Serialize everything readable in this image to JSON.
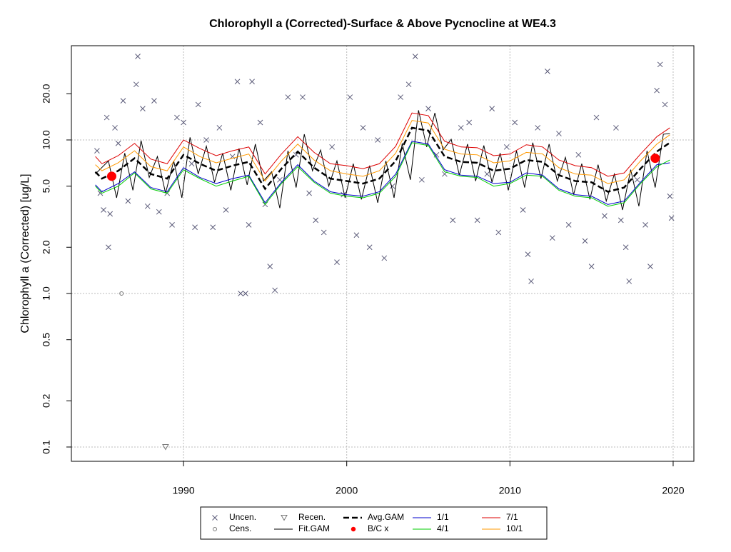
{
  "chart_data": {
    "type": "scatter",
    "title": "Chlorophyll a (Corrected)-Surface & Above Pycnocline at WE4.3",
    "y_label": "Chlorophyll a (Corrected) [ug/L]",
    "xlim": [
      1983.13,
      2021.27
    ],
    "xticks": [
      1990,
      2000,
      2010,
      2020
    ],
    "ylim": [
      0.0807,
      41.1
    ],
    "ylog": true,
    "yticks": [
      0.1,
      0.2,
      0.5,
      {
        "value": 1,
        "label": "1.0"
      },
      {
        "value": 2,
        "label": "2.0"
      },
      {
        "value": 5,
        "label": "5.0"
      },
      {
        "value": 10,
        "label": "10.0"
      },
      {
        "value": 20,
        "label": "20.0"
      }
    ],
    "ygrid": [
      0.1,
      1,
      10
    ],
    "grid": true,
    "series": [
      {
        "name": "Uncen.",
        "kind": "points",
        "marker": "x",
        "color": "#5a5a78",
        "x": [
          1984.7,
          1984.9,
          1985.1,
          1985.3,
          1985.4,
          1985.5,
          1985.8,
          1986.0,
          1986.3,
          1986.6,
          1987.1,
          1987.2,
          1987.5,
          1987.8,
          1988.2,
          1988.5,
          1989.0,
          1989.3,
          1989.6,
          1990.0,
          1990.5,
          1990.7,
          1990.9,
          1991.4,
          1991.8,
          1992.2,
          1992.6,
          1993.0,
          1993.3,
          1993.5,
          1993.8,
          1994.0,
          1994.2,
          1994.7,
          1995.0,
          1995.3,
          1995.6,
          1995.9,
          1996.4,
          1996.9,
          1997.3,
          1997.7,
          1998.1,
          1998.6,
          1999.1,
          1999.4,
          1999.8,
          2000.2,
          2000.6,
          2001.0,
          2001.4,
          2001.9,
          2002.3,
          2002.8,
          2003.3,
          2003.8,
          2004.2,
          2004.6,
          2005.0,
          2005.5,
          2006.0,
          2006.5,
          2007.0,
          2007.5,
          2008.0,
          2008.6,
          2008.9,
          2009.3,
          2009.8,
          2010.3,
          2010.8,
          2011.1,
          2011.3,
          2011.7,
          2012.3,
          2012.6,
          2013.0,
          2013.6,
          2014.2,
          2014.6,
          2015.0,
          2015.3,
          2015.8,
          2016.5,
          2016.8,
          2017.1,
          2017.3,
          2017.8,
          2018.3,
          2018.6,
          2019.0,
          2019.2,
          2019.5,
          2019.8,
          2019.9
        ],
        "values": [
          8.5,
          4.5,
          3.5,
          14,
          2.0,
          3.3,
          12,
          9.5,
          18,
          4.0,
          23,
          35,
          16,
          3.7,
          18,
          3.4,
          4.5,
          2.8,
          14,
          13,
          7.0,
          2.7,
          17,
          10,
          2.7,
          12,
          3.5,
          7.8,
          24,
          1.0,
          1.0,
          2.8,
          24,
          13,
          3.8,
          1.5,
          1.05,
          5.5,
          19,
          8,
          19,
          4.5,
          3.0,
          2.5,
          9.0,
          1.6,
          4.4,
          19,
          2.4,
          12,
          2.0,
          10,
          1.7,
          5.0,
          19,
          23,
          35,
          5.5,
          16,
          8.0,
          6.0,
          3.0,
          12,
          13,
          3.0,
          6.0,
          16,
          2.5,
          9.0,
          13,
          3.5,
          1.8,
          1.2,
          12,
          28,
          2.3,
          11,
          2.8,
          8.0,
          2.2,
          1.5,
          14,
          3.2,
          12,
          3.0,
          2.0,
          1.2,
          5.5,
          2.8,
          1.5,
          21,
          31,
          17,
          4.3,
          3.1
        ]
      },
      {
        "name": "Cens.",
        "kind": "points",
        "marker": "circle",
        "color": "#777777",
        "x": [
          1986.2
        ],
        "values": [
          1.0
        ]
      },
      {
        "name": "Recen.",
        "kind": "points",
        "marker": "triangle",
        "color": "#777777",
        "x": [
          1988.9
        ],
        "values": [
          0.1
        ]
      },
      {
        "name": "Fit.GAM",
        "kind": "line",
        "color": "#000000",
        "width": 1,
        "x": [
          1984.6,
          1985.4,
          1985.9,
          1986.4,
          1986.9,
          1987.4,
          1987.9,
          1988.4,
          1988.9,
          1989.4,
          1989.9,
          1990.4,
          1990.9,
          1991.4,
          1991.9,
          1992.4,
          1992.9,
          1993.4,
          1993.9,
          1994.4,
          1994.9,
          1995.4,
          1995.9,
          1996.4,
          1996.9,
          1997.4,
          1997.9,
          1998.4,
          1998.9,
          1999.4,
          1999.9,
          2000.4,
          2000.9,
          2001.4,
          2001.9,
          2002.4,
          2002.9,
          2003.4,
          2003.9,
          2004.4,
          2004.9,
          2005.4,
          2005.9,
          2006.4,
          2006.9,
          2007.4,
          2007.9,
          2008.4,
          2008.9,
          2009.4,
          2009.9,
          2010.4,
          2010.9,
          2011.4,
          2011.9,
          2012.4,
          2012.9,
          2013.4,
          2013.9,
          2014.4,
          2014.9,
          2015.4,
          2015.9,
          2016.4,
          2016.9,
          2017.4,
          2017.9,
          2018.4,
          2018.9,
          2019.4,
          2019.8
        ],
        "values": [
          6.0,
          7.3,
          4.2,
          8.2,
          4.7,
          9.9,
          5.7,
          7.8,
          4.5,
          7.3,
          4.2,
          10.4,
          6.0,
          9.1,
          5.3,
          8.2,
          4.7,
          8.8,
          5.1,
          9.4,
          5.4,
          6.2,
          3.6,
          8.5,
          4.9,
          10.9,
          6.3,
          8.6,
          5.0,
          7.3,
          4.2,
          7.0,
          4.1,
          6.8,
          3.9,
          7.3,
          4.2,
          9.5,
          5.5,
          15.6,
          9.0,
          15.0,
          8.6,
          10.1,
          5.9,
          9.4,
          5.4,
          9.2,
          5.3,
          8.2,
          4.7,
          8.5,
          4.9,
          9.6,
          5.6,
          9.4,
          5.4,
          7.7,
          4.4,
          7.0,
          4.1,
          6.9,
          4.0,
          6.0,
          3.5,
          6.4,
          3.7,
          8.5,
          4.9,
          10.9,
          11.0
        ]
      },
      {
        "name": "Avg.GAM",
        "kind": "line",
        "dash": true,
        "color": "#000000",
        "width": 2.5,
        "x": [
          1984.6,
          1985,
          1986,
          1987,
          1988,
          1989,
          1990,
          1991,
          1992,
          1993,
          1994,
          1995,
          1996,
          1997,
          1998,
          1999,
          2000,
          2001,
          2002,
          2003,
          2004,
          2005,
          2006,
          2007,
          2008,
          2009,
          2010,
          2011,
          2012,
          2013,
          2014,
          2015,
          2016,
          2017,
          2018,
          2019,
          2019.8
        ],
        "values": [
          6.2,
          5.6,
          6.3,
          7.6,
          6.0,
          5.6,
          8.0,
          7.0,
          6.3,
          6.8,
          7.2,
          4.8,
          6.5,
          8.4,
          6.6,
          5.6,
          5.4,
          5.2,
          5.6,
          7.3,
          12.0,
          11.5,
          7.8,
          7.2,
          7.1,
          6.3,
          6.5,
          7.4,
          7.2,
          5.9,
          5.4,
          5.3,
          4.6,
          4.9,
          6.5,
          8.4,
          9.6
        ]
      },
      {
        "name": "B/C x",
        "kind": "points",
        "marker": "dot",
        "color": "#ff0000",
        "x": [
          1985.6,
          2018.9
        ],
        "values": [
          5.8,
          7.6
        ]
      },
      {
        "name": "1/1",
        "kind": "line",
        "color": "#0000cc",
        "width": 1,
        "x": [
          1984.6,
          1985,
          1986,
          1987,
          1988,
          1989,
          1990,
          1991,
          1992,
          1993,
          1994,
          1995,
          1996,
          1997,
          1998,
          1999,
          2000,
          2001,
          2002,
          2003,
          2004,
          2005,
          2006,
          2007,
          2008,
          2009,
          2010,
          2011,
          2012,
          2013,
          2014,
          2015,
          2016,
          2017,
          2018,
          2019,
          2019.8
        ],
        "values": [
          5.1,
          4.6,
          5.2,
          6.2,
          4.9,
          4.6,
          6.6,
          5.7,
          5.2,
          5.6,
          5.9,
          3.9,
          5.3,
          6.9,
          5.4,
          4.6,
          4.4,
          4.3,
          4.6,
          6.0,
          9.8,
          9.4,
          6.4,
          5.9,
          5.8,
          5.2,
          5.3,
          6.1,
          5.9,
          4.8,
          4.4,
          4.3,
          3.8,
          4.0,
          5.3,
          6.9,
          7.1
        ]
      },
      {
        "name": "4/1",
        "kind": "line",
        "color": "#00cc00",
        "width": 1,
        "x": [
          1984.6,
          1985,
          1986,
          1987,
          1988,
          1989,
          1990,
          1991,
          1992,
          1993,
          1994,
          1995,
          1996,
          1997,
          1998,
          1999,
          2000,
          2001,
          2002,
          2003,
          2004,
          2005,
          2006,
          2007,
          2008,
          2009,
          2010,
          2011,
          2012,
          2013,
          2014,
          2015,
          2016,
          2017,
          2018,
          2019,
          2019.8
        ],
        "values": [
          5.0,
          4.5,
          5.0,
          6.1,
          4.8,
          4.5,
          6.4,
          5.6,
          5.0,
          5.4,
          5.8,
          3.8,
          5.2,
          6.7,
          5.3,
          4.5,
          4.3,
          4.2,
          4.5,
          5.8,
          9.6,
          9.2,
          6.2,
          5.8,
          5.7,
          5.0,
          5.2,
          5.9,
          5.8,
          4.7,
          4.3,
          4.2,
          3.7,
          3.9,
          5.2,
          6.7,
          7.4
        ]
      },
      {
        "name": "7/1",
        "kind": "line",
        "color": "#dd0000",
        "width": 1,
        "x": [
          1984.6,
          1985,
          1986,
          1987,
          1988,
          1989,
          1990,
          1991,
          1992,
          1993,
          1994,
          1995,
          1996,
          1997,
          1998,
          1999,
          2000,
          2001,
          2002,
          2003,
          2004,
          2005,
          2006,
          2007,
          2008,
          2009,
          2010,
          2011,
          2012,
          2013,
          2014,
          2015,
          2016,
          2017,
          2018,
          2019,
          2019.8
        ],
        "values": [
          7.8,
          7.0,
          7.9,
          9.5,
          7.5,
          7.0,
          10.0,
          8.8,
          7.9,
          8.5,
          9.0,
          6.0,
          8.1,
          10.5,
          8.3,
          7.0,
          6.8,
          6.5,
          7.0,
          9.1,
          15.0,
          14.4,
          9.8,
          9.0,
          8.9,
          7.9,
          8.1,
          9.3,
          9.0,
          7.4,
          6.8,
          6.6,
          5.8,
          6.1,
          8.1,
          10.5,
          12.0
        ]
      },
      {
        "name": "10/1",
        "kind": "line",
        "color": "#ff9900",
        "width": 1,
        "x": [
          1984.6,
          1985,
          1986,
          1987,
          1988,
          1989,
          1990,
          1991,
          1992,
          1993,
          1994,
          1995,
          1996,
          1997,
          1998,
          1999,
          2000,
          2001,
          2002,
          2003,
          2004,
          2005,
          2006,
          2007,
          2008,
          2009,
          2010,
          2011,
          2012,
          2013,
          2014,
          2015,
          2016,
          2017,
          2018,
          2019,
          2019.8
        ],
        "values": [
          6.9,
          6.3,
          7.1,
          8.5,
          6.7,
          6.3,
          9.0,
          7.8,
          7.1,
          7.6,
          8.1,
          5.4,
          7.3,
          9.4,
          7.4,
          6.3,
          6.0,
          5.8,
          6.3,
          8.2,
          13.4,
          12.9,
          8.7,
          8.1,
          8.0,
          7.1,
          7.3,
          8.3,
          8.1,
          6.6,
          6.0,
          5.9,
          5.2,
          5.5,
          7.3,
          9.4,
          10.8
        ]
      }
    ]
  }
}
